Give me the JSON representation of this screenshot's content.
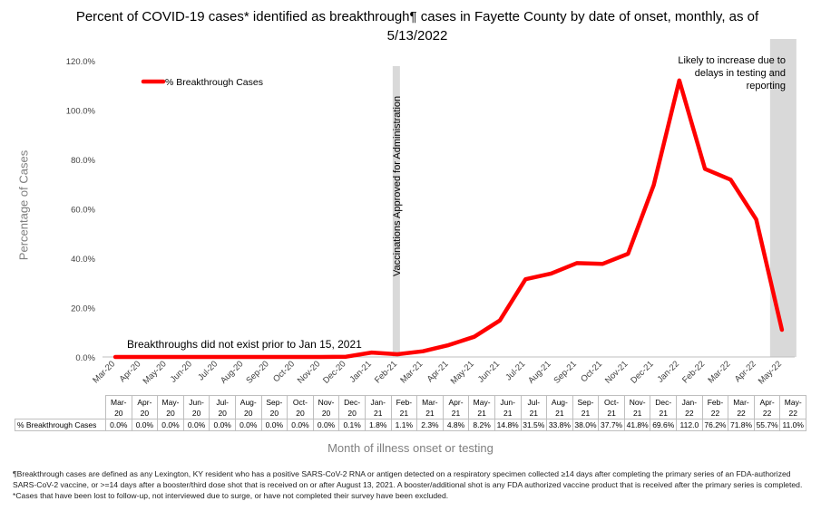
{
  "title": "Percent of COVID-19 cases* identified as breakthrough¶ cases in Fayette County by date of onset, monthly, as of 5/13/2022",
  "chart_data": {
    "type": "line",
    "title": "Percent of COVID-19 cases* identified as breakthrough¶ cases in Fayette County by date of onset, monthly, as of 5/13/2022",
    "xlabel": "Month of illness onset or testing",
    "ylabel": "Percentage of Cases",
    "ylim": [
      0,
      120
    ],
    "yticks": [
      "0.0%",
      "20.0%",
      "40.0%",
      "60.0%",
      "80.0%",
      "100.0%",
      "120.0%"
    ],
    "grid": false,
    "legend_position": "top-left",
    "categories": [
      "Mar-20",
      "Apr-20",
      "May-20",
      "Jun-20",
      "Jul-20",
      "Aug-20",
      "Sep-20",
      "Oct-20",
      "Nov-20",
      "Dec-20",
      "Jan-21",
      "Feb-21",
      "Mar-21",
      "Apr-21",
      "May-21",
      "Jun-21",
      "Jul-21",
      "Aug-21",
      "Sep-21",
      "Oct-21",
      "Nov-21",
      "Dec-21",
      "Jan-22",
      "Feb-22",
      "Mar-22",
      "Apr-22",
      "May-22"
    ],
    "series": [
      {
        "name": "% Breakthrough Cases",
        "color": "#ff0000",
        "values": [
          0.0,
          0.0,
          0.0,
          0.0,
          0.0,
          0.0,
          0.0,
          0.0,
          0.0,
          0.1,
          1.8,
          1.1,
          2.3,
          4.8,
          8.2,
          14.8,
          31.5,
          33.8,
          38.0,
          37.7,
          41.8,
          69.6,
          112.0,
          76.2,
          71.8,
          55.7,
          11.0
        ],
        "table_labels": [
          "0.0%",
          "0.0%",
          "0.0%",
          "0.0%",
          "0.0%",
          "0.0%",
          "0.0%",
          "0.0%",
          "0.0%",
          "0.1%",
          "1.8%",
          "1.1%",
          "2.3%",
          "4.8%",
          "8.2%",
          "14.8%",
          "31.5%",
          "33.8%",
          "38.0%",
          "37.7%",
          "41.8%",
          "69.6%",
          "112.0",
          "76.2%",
          "71.8%",
          "55.7%",
          "11.0%"
        ]
      }
    ],
    "table_header": [
      [
        "Mar-",
        "20"
      ],
      [
        "Apr-",
        "20"
      ],
      [
        "May-",
        "20"
      ],
      [
        "Jun-",
        "20"
      ],
      [
        "Jul-",
        "20"
      ],
      [
        "Aug-",
        "20"
      ],
      [
        "Sep-",
        "20"
      ],
      [
        "Oct-",
        "20"
      ],
      [
        "Nov-",
        "20"
      ],
      [
        "Dec-",
        "20"
      ],
      [
        "Jan-",
        "21"
      ],
      [
        "Feb-",
        "21"
      ],
      [
        "Mar-",
        "21"
      ],
      [
        "Apr-",
        "21"
      ],
      [
        "May-",
        "21"
      ],
      [
        "Jun-",
        "21"
      ],
      [
        "Jul-",
        "21"
      ],
      [
        "Aug-",
        "21"
      ],
      [
        "Sep-",
        "21"
      ],
      [
        "Oct-",
        "21"
      ],
      [
        "Nov-",
        "21"
      ],
      [
        "Dec-",
        "21"
      ],
      [
        "Jan-",
        "22"
      ],
      [
        "Feb-",
        "22"
      ],
      [
        "Mar-",
        "22"
      ],
      [
        "Apr-",
        "22"
      ],
      [
        "May-",
        "22"
      ]
    ],
    "annotations": {
      "vaccination_band_label": "Vaccinations Approved for Administration",
      "vaccination_band_category": "Feb-21",
      "recent_band_label": "Likely to increase due to delays in testing and reporting",
      "recent_band_label_lines": [
        "Likely to increase due to",
        "delays in testing and",
        "reporting"
      ],
      "recent_band_category": "May-22",
      "pre_breakthrough_note": "Breakthroughs did not exist prior to Jan 15, 2021"
    },
    "band_color": "#d9d9d9"
  },
  "footnote": "¶Breakthrough cases are defined as any Lexington, KY resident who has a positive SARS-CoV-2 RNA or antigen detected on a respiratory specimen collected ≥14 days after completing the primary series of an FDA-authorized SARS-CoV-2 vaccine, or >=14 days after a booster/third dose shot that is received on or after August 13, 2021.  A booster/additional shot is any FDA authorized vaccine product that is received after the primary series is completed. *Cases that have been lost to follow-up, not interviewed due to surge, or have not completed their survey have been excluded."
}
